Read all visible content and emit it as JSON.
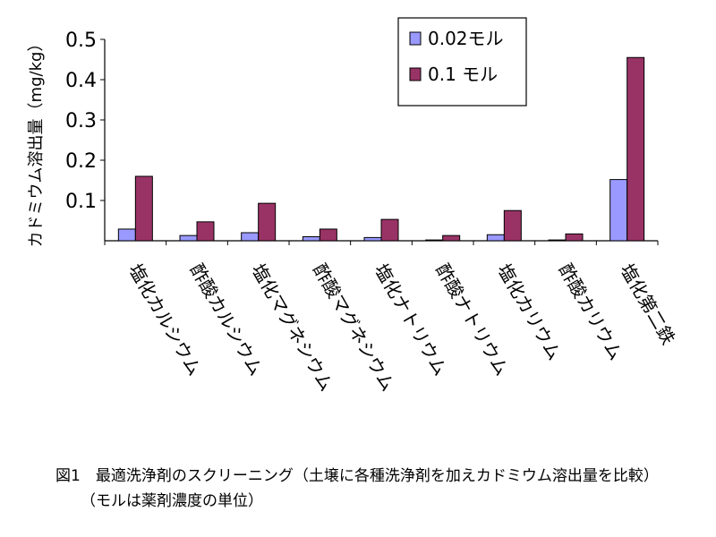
{
  "chart_data": {
    "type": "bar",
    "ylabel": "カドミウム溶出量（mg/kg）",
    "ylim": [
      0,
      0.5
    ],
    "yticks": [
      "0.5",
      "0.4",
      "0.3",
      "0.2",
      "0.1"
    ],
    "categories": [
      "塩化カルシウム",
      "酢酸カルシウム",
      "塩化マグネシウム",
      "酢酸マグネシウム",
      "塩化ナトリウム",
      "酢酸ナトリウム",
      "塩化カリウム",
      "酢酸カリウム",
      "塩化第二鉄"
    ],
    "series": [
      {
        "name": "0.02モル",
        "color": "#9999ff",
        "values": [
          0.029,
          0.013,
          0.02,
          0.01,
          0.008,
          0.002,
          0.015,
          0.002,
          0.152
        ]
      },
      {
        "name": "0.1 モル",
        "color": "#993366",
        "values": [
          0.16,
          0.047,
          0.093,
          0.029,
          0.053,
          0.013,
          0.075,
          0.017,
          0.455
        ]
      }
    ],
    "legend": "top-right",
    "grid": false
  },
  "caption": {
    "line1": "図1　最適洗浄剤のスクリーニング（土壌に各種洗浄剤を加えカドミウム溶出量を比較）",
    "line2": "（モルは薬剤濃度の単位）"
  }
}
